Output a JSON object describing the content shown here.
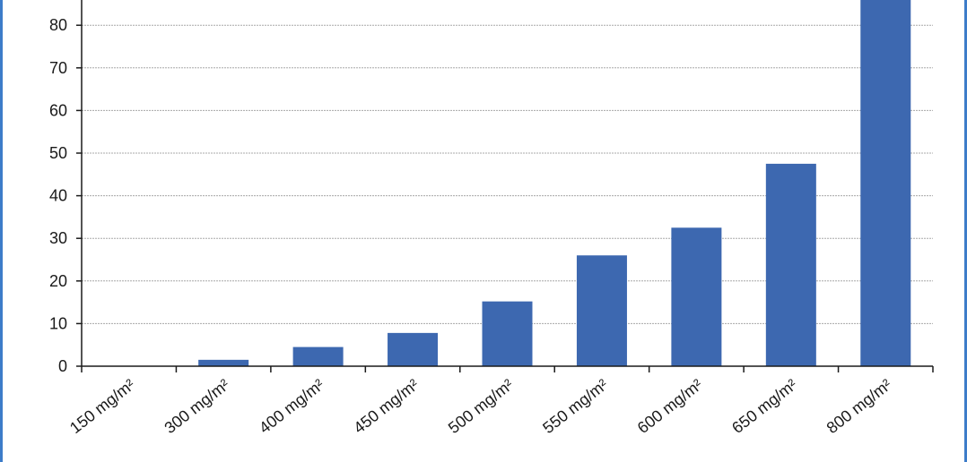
{
  "chart_data": {
    "type": "bar",
    "categories": [
      "150 mg/m²",
      "300 mg/m²",
      "400 mg/m²",
      "450 mg/m²",
      "500 mg/m²",
      "550 mg/m²",
      "600 mg/m²",
      "650 mg/m²",
      "800 mg/m²"
    ],
    "values": [
      0,
      1.5,
      4.5,
      7.8,
      15.2,
      26,
      32.5,
      47.5,
      87
    ],
    "yticks": [
      0,
      10,
      20,
      30,
      40,
      50,
      60,
      70,
      80
    ],
    "ylim": [
      0,
      86
    ],
    "grid": true,
    "bar_color": "#3d68b0",
    "frame_color": "#3d7cc9",
    "title": "",
    "xlabel": "",
    "ylabel": ""
  }
}
